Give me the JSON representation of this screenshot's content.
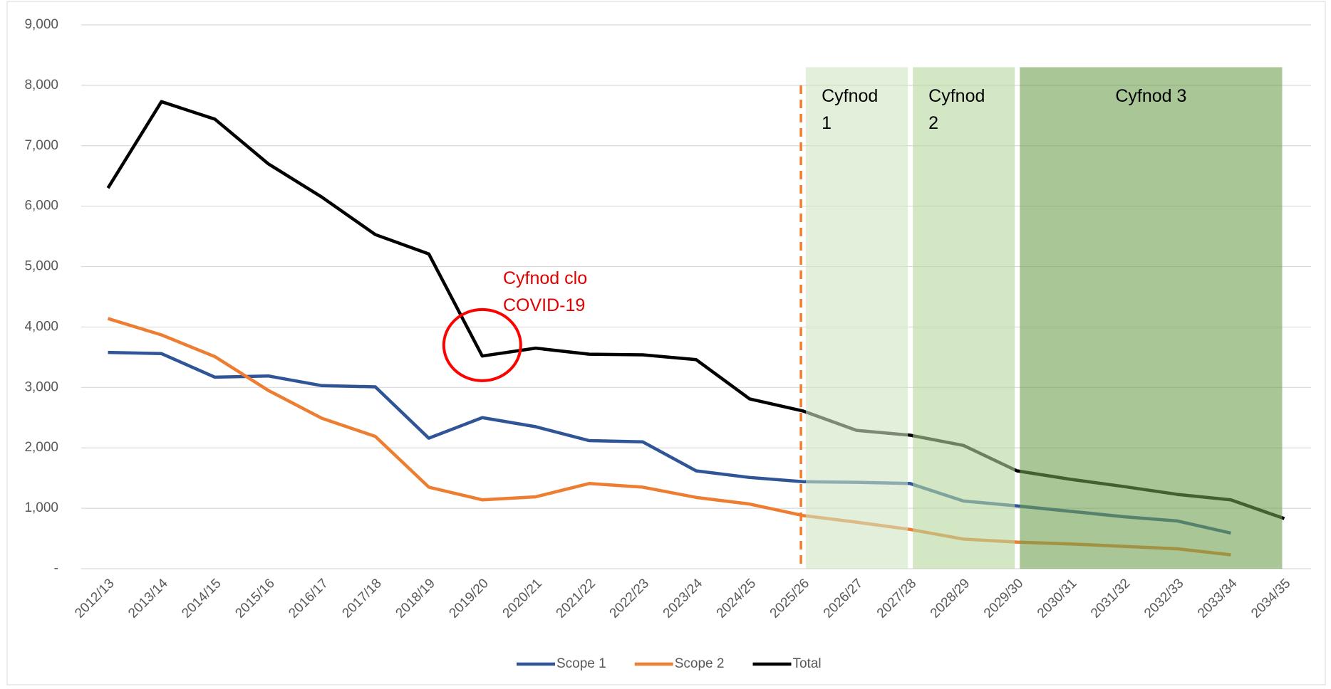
{
  "chart_data": {
    "type": "line",
    "categories": [
      "2012/13",
      "2013/14",
      "2014/15",
      "2015/16",
      "2016/17",
      "2017/18",
      "2018/19",
      "2019/20",
      "2020/21",
      "2021/22",
      "2022/23",
      "2023/24",
      "2024/25",
      "2025/26",
      "2026/27",
      "2027/28",
      "2028/29",
      "2029/30",
      "2030/31",
      "2031/32",
      "2032/33",
      "2033/34",
      "2034/35"
    ],
    "series": [
      {
        "name": "Scope 1",
        "color": "#2f5597",
        "values": [
          3580,
          3560,
          3170,
          3190,
          3030,
          3010,
          2160,
          2500,
          2350,
          2120,
          2100,
          1620,
          1510,
          1440,
          1430,
          1410,
          1120,
          1040,
          950,
          860,
          790,
          590,
          null
        ]
      },
      {
        "name": "Scope 2",
        "color": "#ed7d31",
        "values": [
          4140,
          3870,
          3510,
          2950,
          2490,
          2190,
          1350,
          1140,
          1190,
          1410,
          1350,
          1180,
          1070,
          880,
          770,
          650,
          490,
          440,
          410,
          370,
          330,
          230,
          null
        ]
      },
      {
        "name": "Total",
        "color": "#000000",
        "values": [
          6300,
          7730,
          7440,
          6700,
          6150,
          5530,
          5210,
          3520,
          3650,
          3550,
          3540,
          3460,
          2810,
          2610,
          2290,
          2210,
          2040,
          1620,
          1480,
          1360,
          1230,
          1140,
          830
        ]
      }
    ],
    "ylim": [
      0,
      9000
    ],
    "yticks": [
      {
        "value": 0,
        "label": "-"
      },
      {
        "value": 1000,
        "label": "1,000"
      },
      {
        "value": 2000,
        "label": "2,000"
      },
      {
        "value": 3000,
        "label": "3,000"
      },
      {
        "value": 4000,
        "label": "4,000"
      },
      {
        "value": 5000,
        "label": "5,000"
      },
      {
        "value": 6000,
        "label": "6,000"
      },
      {
        "value": 7000,
        "label": "7,000"
      },
      {
        "value": 8000,
        "label": "8,000"
      },
      {
        "value": 9000,
        "label": "9,000"
      }
    ],
    "grid": true,
    "legend": "bottom",
    "periods": [
      {
        "label": "Cyfnod 1",
        "start": "2025/26",
        "end": "2027/28",
        "color": "#cfe4c1"
      },
      {
        "label": "Cyfnod 2",
        "start": "2027/28",
        "end": "2029/30",
        "color": "#b7d79e"
      },
      {
        "label": "Cyfnod 3",
        "start": "2029/30",
        "end": "2034/35",
        "color": "#70a050"
      }
    ],
    "annotation": "Cyfnod clo COVID-19"
  }
}
